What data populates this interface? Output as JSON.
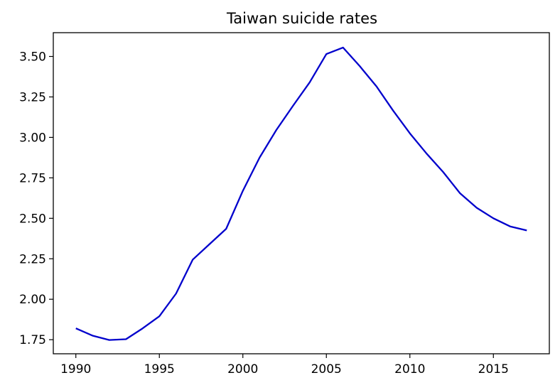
{
  "chart_data": {
    "type": "line",
    "title": "Taiwan suicide rates",
    "xlabel": "",
    "ylabel": "",
    "xlim": [
      1988.65,
      2018.35
    ],
    "ylim": [
      1.663,
      3.647
    ],
    "x_ticks": [
      1990,
      1995,
      2000,
      2005,
      2010,
      2015
    ],
    "y_ticks": [
      1.75,
      2.0,
      2.25,
      2.5,
      2.75,
      3.0,
      3.25,
      3.5
    ],
    "y_tick_labels": [
      "1.75",
      "2.00",
      "2.25",
      "2.50",
      "2.75",
      "3.00",
      "3.25",
      "3.50"
    ],
    "grid": false,
    "series": [
      {
        "color": "#0000cc",
        "x": [
          1990,
          1991,
          1992,
          1993,
          1994,
          1995,
          1996,
          1997,
          1998,
          1999,
          2000,
          2001,
          2002,
          2003,
          2004,
          2005,
          2006,
          2007,
          2008,
          2009,
          2010,
          2011,
          2012,
          2013,
          2014,
          2015,
          2016,
          2017
        ],
        "y": [
          1.82,
          1.775,
          1.748,
          1.753,
          1.82,
          1.895,
          2.035,
          2.245,
          2.34,
          2.435,
          2.67,
          2.875,
          3.045,
          3.195,
          3.34,
          3.515,
          3.555,
          3.44,
          3.315,
          3.165,
          3.025,
          2.9,
          2.785,
          2.655,
          2.565,
          2.5,
          2.45,
          2.425
        ]
      }
    ]
  }
}
